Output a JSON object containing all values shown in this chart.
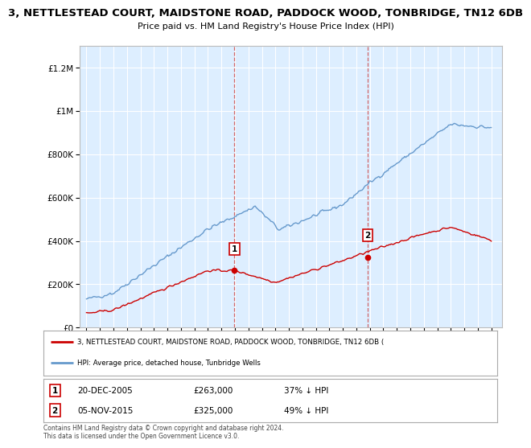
{
  "title": "3, NETTLESTEAD COURT, MAIDSTONE ROAD, PADDOCK WOOD, TONBRIDGE, TN12 6DB",
  "subtitle": "Price paid vs. HM Land Registry's House Price Index (HPI)",
  "ylim": [
    0,
    1300000
  ],
  "xlim_left": 1994.5,
  "xlim_right": 2025.8,
  "background_color": "#ffffff",
  "plot_bg_color": "#ddeeff",
  "grid_color": "#ffffff",
  "sale1_year": 2005.97,
  "sale1_price": 263000,
  "sale2_year": 2015.84,
  "sale2_price": 325000,
  "red_color": "#cc0000",
  "blue_color": "#6699cc",
  "title_fontsize": 9.5,
  "subtitle_fontsize": 8,
  "legend_label_red": "3, NETTLESTEAD COURT, MAIDSTONE ROAD, PADDOCK WOOD, TONBRIDGE, TN12 6DB (",
  "legend_label_blue": "HPI: Average price, detached house, Tunbridge Wells",
  "footer": "Contains HM Land Registry data © Crown copyright and database right 2024.\nThis data is licensed under the Open Government Licence v3.0.",
  "yticks": [
    0,
    200000,
    400000,
    600000,
    800000,
    1000000,
    1200000
  ],
  "ytick_labels": [
    "£0",
    "£200K",
    "£400K",
    "£600K",
    "£800K",
    "£1M",
    "£1.2M"
  ]
}
